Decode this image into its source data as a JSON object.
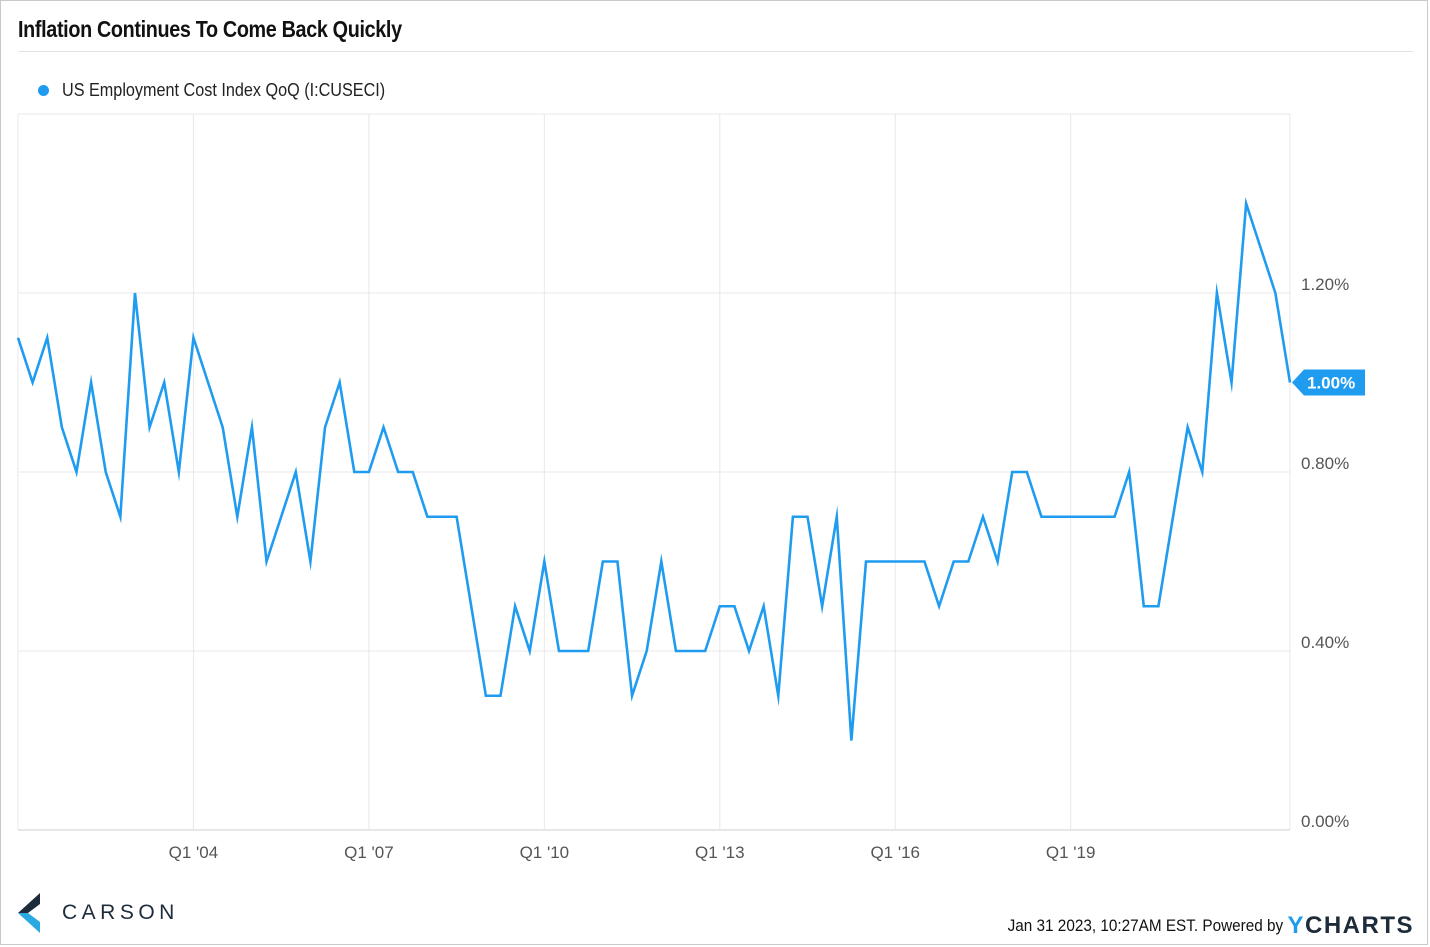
{
  "header": {
    "title": "Inflation Continues To Come Back Quickly"
  },
  "colors": {
    "series": "#1f9cf0",
    "grid": "#e8e8e8",
    "brand_dark": "#1d2b3a",
    "brand_light": "#2aa8e0"
  },
  "footer": {
    "brand": "CARSON",
    "timestamp": "Jan 31 2023, 10:27AM EST. Powered by",
    "powered_by_logo_prefix": "Y",
    "powered_by_logo_rest": "CHARTS"
  },
  "chart_data": {
    "type": "line",
    "title": "Inflation Continues To Come Back Quickly",
    "xlabel": "",
    "ylabel": "",
    "series": [
      {
        "name": "US Employment Cost Index QoQ (I:CUSECI)",
        "color": "#1f9cf0",
        "x_start_quarter": "Q1 2001",
        "values": [
          1.1,
          1.0,
          1.1,
          0.9,
          0.8,
          1.0,
          0.8,
          0.7,
          1.2,
          0.9,
          1.0,
          0.8,
          1.1,
          1.0,
          0.9,
          0.7,
          0.9,
          0.6,
          0.7,
          0.8,
          0.6,
          0.9,
          1.0,
          0.8,
          0.8,
          0.9,
          0.8,
          0.8,
          0.7,
          0.7,
          0.7,
          0.5,
          0.3,
          0.3,
          0.5,
          0.4,
          0.6,
          0.4,
          0.4,
          0.4,
          0.6,
          0.6,
          0.3,
          0.4,
          0.6,
          0.4,
          0.4,
          0.4,
          0.5,
          0.5,
          0.4,
          0.5,
          0.3,
          0.7,
          0.7,
          0.5,
          0.7,
          0.2,
          0.6,
          0.6,
          0.6,
          0.6,
          0.6,
          0.5,
          0.6,
          0.6,
          0.7,
          0.6,
          0.8,
          0.8,
          0.7,
          0.7,
          0.7,
          0.7,
          0.7,
          0.7,
          0.8,
          0.5,
          0.5,
          0.7,
          0.9,
          0.8,
          1.2,
          1.0,
          1.4,
          1.3,
          1.2,
          1.0
        ]
      }
    ],
    "x_ticks": [
      "Q1 '04",
      "Q1 '07",
      "Q1 '10",
      "Q1 '13",
      "Q1 '16",
      "Q1 '19"
    ],
    "x_tick_quarter_index": [
      12,
      24,
      36,
      48,
      60,
      72
    ],
    "y_ticks": [
      "0.00%",
      "0.40%",
      "0.80%",
      "1.20%"
    ],
    "y_tick_values": [
      0.0,
      0.4,
      0.8,
      1.2
    ],
    "ylim": [
      0.0,
      1.6
    ],
    "grid": true,
    "axis_position": "right",
    "last_value_label": "1.00%",
    "legend_position": "top-left"
  }
}
